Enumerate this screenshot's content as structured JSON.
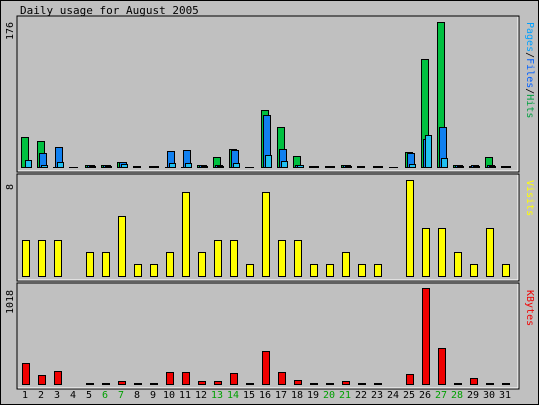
{
  "title": "Daily usage for August 2005",
  "colors": {
    "hits": "#00c040",
    "files": "#1080f0",
    "pages": "#20c0f0",
    "visits": "#ffff00",
    "kbytes": "#f00000",
    "weekday": "#000000",
    "weekend": "#00a000",
    "background": "#c0c0c0"
  },
  "right_labels": {
    "top": [
      {
        "text": "Pages",
        "color": "#00a0ff"
      },
      {
        "text": "/",
        "color": "#000000"
      },
      {
        "text": "Files",
        "color": "#0060ff"
      },
      {
        "text": "/",
        "color": "#000000"
      },
      {
        "text": "Hits",
        "color": "#00a040"
      }
    ],
    "middle": "Visits",
    "bottom": "KBytes"
  },
  "chart_data": {
    "type": "bar",
    "title": "Daily usage for August 2005",
    "categories": [
      "1",
      "2",
      "3",
      "4",
      "5",
      "6",
      "7",
      "8",
      "9",
      "10",
      "11",
      "12",
      "13",
      "14",
      "15",
      "16",
      "17",
      "18",
      "19",
      "20",
      "21",
      "22",
      "23",
      "24",
      "25",
      "26",
      "27",
      "28",
      "29",
      "30",
      "31"
    ],
    "weekend_days": [
      "6",
      "7",
      "13",
      "14",
      "20",
      "21",
      "27",
      "28"
    ],
    "panels": [
      {
        "name": "hits-files-pages",
        "ymax": 176,
        "max_label": "176",
        "series": [
          {
            "name": "Hits",
            "values": [
              36,
              31,
              0,
              0,
              2,
              3,
              6,
              1,
              1,
              0,
              0,
              2,
              12,
              22,
              0,
              69,
              48,
              13,
              1,
              1,
              3,
              1,
              1,
              0,
              18,
              131,
              176,
              3,
              1,
              12,
              1
            ]
          },
          {
            "name": "Files",
            "values": [
              0,
              17,
              24,
              0,
              2,
              3,
              6,
              0,
              1,
              20,
              21,
              2,
              2,
              21,
              0,
              63,
              22,
              2,
              1,
              1,
              2,
              0,
              1,
              0,
              17,
              34,
              48,
              2,
              2,
              3,
              1
            ]
          },
          {
            "name": "Pages",
            "values": [
              8,
              3,
              6,
              0,
              1,
              1,
              4,
              0,
              0,
              5,
              5,
              1,
              1,
              5,
              0,
              14,
              7,
              2,
              0,
              0,
              1,
              0,
              0,
              0,
              4,
              39,
              11,
              1,
              1,
              1,
              0
            ]
          }
        ]
      },
      {
        "name": "visits",
        "ymax": 8,
        "max_label": "8",
        "series": [
          {
            "name": "Visits",
            "values": [
              3,
              3,
              3,
              0,
              2,
              2,
              5,
              1,
              1,
              2,
              7,
              2,
              3,
              3,
              1,
              7,
              3,
              3,
              1,
              1,
              2,
              1,
              1,
              0,
              8,
              4,
              4,
              2,
              1,
              4,
              1
            ]
          }
        ]
      },
      {
        "name": "kbytes",
        "ymax": 1018,
        "max_label": "1018",
        "series": [
          {
            "name": "KBytes",
            "values": [
              220,
              100,
              140,
              0,
              10,
              10,
              30,
              10,
              10,
              130,
              130,
              30,
              30,
              120,
              10,
              350,
              130,
              40,
              10,
              10,
              30,
              10,
              10,
              0,
              110,
              1018,
              380,
              10,
              60,
              10,
              10
            ]
          }
        ]
      }
    ]
  }
}
